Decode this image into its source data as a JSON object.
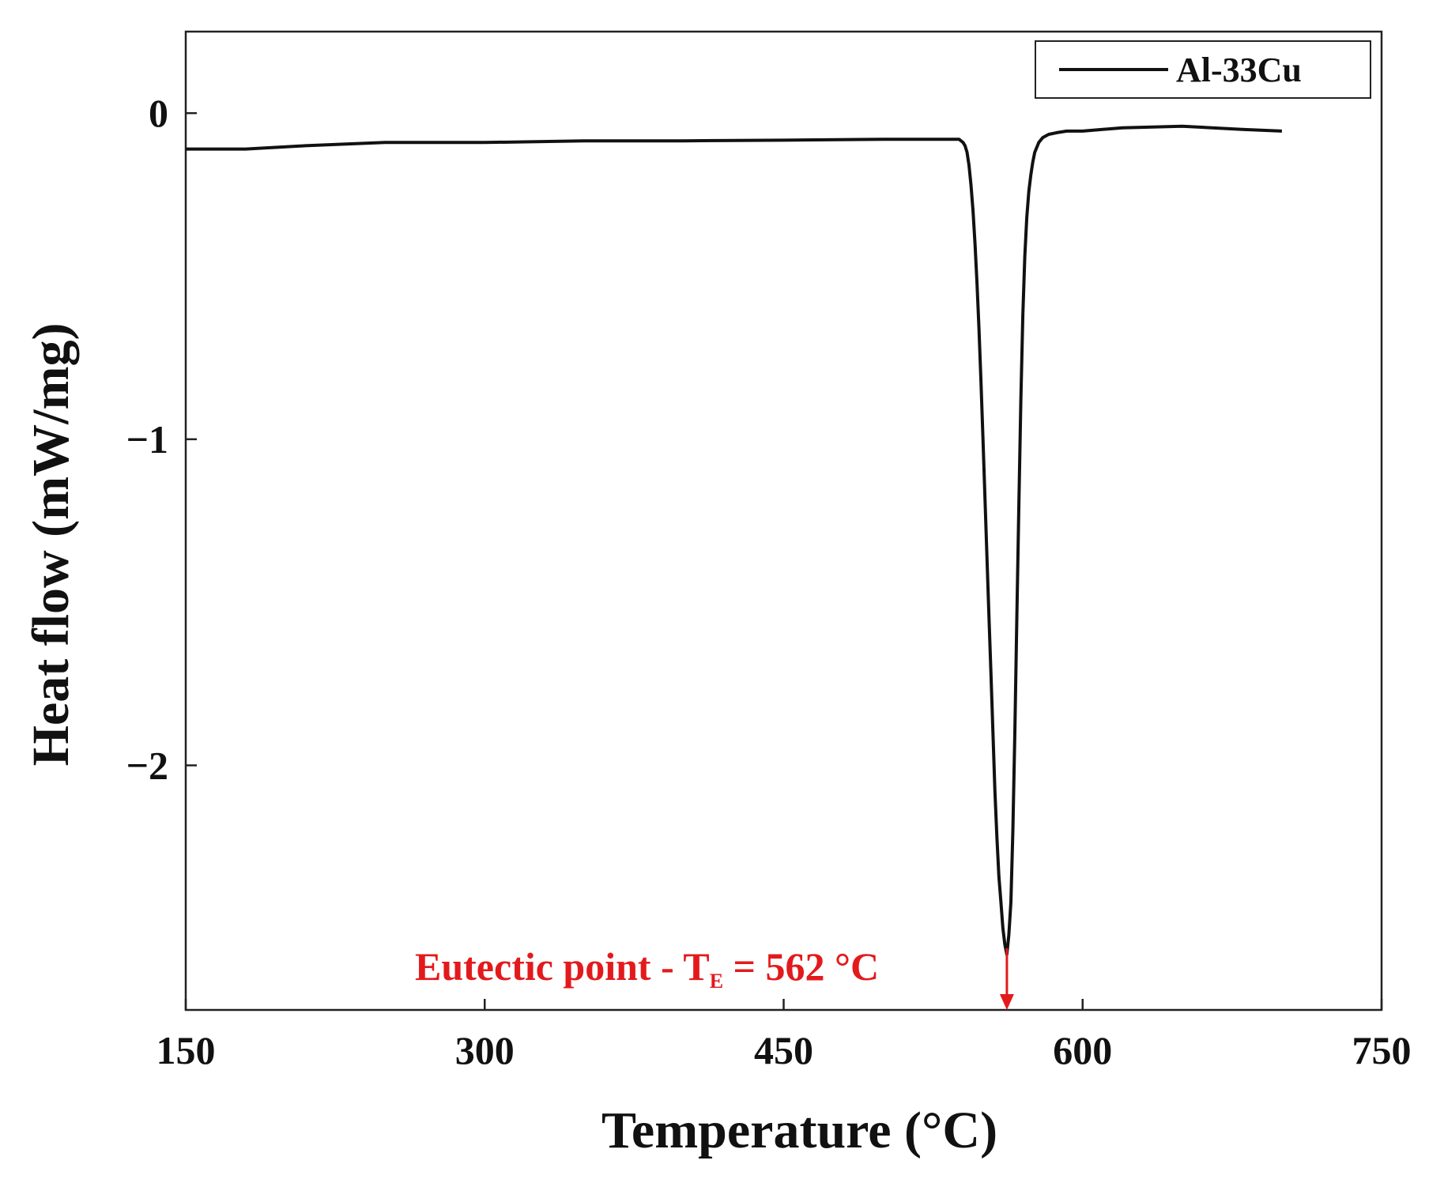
{
  "chart_data": {
    "type": "line",
    "xlabel": "Temperature (°C)",
    "ylabel": "Heat flow (mW/mg)",
    "xlim": [
      150,
      750
    ],
    "ylim": [
      -2.75,
      0.25
    ],
    "x_ticks": [
      {
        "value": 150,
        "label": "150"
      },
      {
        "value": 300,
        "label": "300"
      },
      {
        "value": 450,
        "label": "450"
      },
      {
        "value": 600,
        "label": "600"
      },
      {
        "value": 750,
        "label": "750"
      }
    ],
    "y_ticks": [
      {
        "value": 0,
        "label": "0"
      },
      {
        "value": -1,
        "label": "−1"
      },
      {
        "value": -2,
        "label": "−2"
      }
    ],
    "legend": {
      "position": "top-right",
      "entries": [
        "Al-33Cu"
      ]
    },
    "series": [
      {
        "name": "Al-33Cu",
        "color": "#111111",
        "x": [
          150,
          180,
          210,
          250,
          300,
          350,
          400,
          450,
          500,
          535,
          538,
          540,
          541,
          542,
          543,
          544,
          545,
          546,
          547,
          548,
          549,
          550,
          551,
          552,
          553,
          554,
          555,
          556,
          557,
          558,
          559,
          560,
          561,
          562,
          563,
          564,
          565,
          566,
          567,
          568,
          569,
          570,
          571,
          572,
          573,
          574,
          575,
          576,
          578,
          580,
          583,
          587,
          592,
          600,
          620,
          650,
          680,
          700
        ],
        "y": [
          -0.11,
          -0.11,
          -0.1,
          -0.09,
          -0.09,
          -0.085,
          -0.085,
          -0.083,
          -0.08,
          -0.08,
          -0.08,
          -0.09,
          -0.1,
          -0.12,
          -0.16,
          -0.22,
          -0.3,
          -0.4,
          -0.52,
          -0.66,
          -0.82,
          -1.0,
          -1.18,
          -1.36,
          -1.54,
          -1.72,
          -1.9,
          -2.08,
          -2.22,
          -2.34,
          -2.42,
          -2.5,
          -2.55,
          -2.58,
          -2.52,
          -2.42,
          -2.2,
          -1.9,
          -1.55,
          -1.2,
          -0.88,
          -0.62,
          -0.44,
          -0.32,
          -0.24,
          -0.19,
          -0.15,
          -0.12,
          -0.09,
          -0.075,
          -0.065,
          -0.06,
          -0.055,
          -0.055,
          -0.045,
          -0.04,
          -0.05,
          -0.055
        ]
      }
    ],
    "annotations": [
      {
        "text_main": "Eutectic point - T",
        "text_sub": "E",
        "text_rest": " = 562 °C",
        "arrow_x": 562,
        "color": "#e31a1c"
      }
    ],
    "grid": false
  }
}
